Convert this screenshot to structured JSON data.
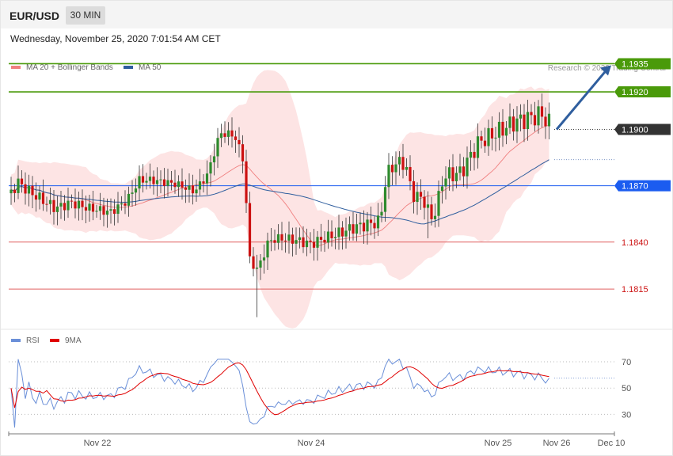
{
  "header": {
    "symbol": "EUR/USD",
    "timeframe": "30 MIN"
  },
  "datetime": "Wednesday, November 25, 2020 7:01:54 AM CET",
  "legend": {
    "ma20": "MA 20 + Bollinger Bands",
    "ma50": "MA 50",
    "rsi": "RSI",
    "rsi_ma": "9MA"
  },
  "credit": "Research © 2020 Trading Central",
  "colors": {
    "ma20": "#f08080",
    "ma50": "#2f5e9e",
    "rsi": "#6a8fd8",
    "rsi_ma": "#e00000",
    "bull": "#2e8b2e",
    "bear": "#cc1111",
    "target": "#4a9a0a",
    "pivot": "#1b5cf0",
    "support": "#e06060",
    "last": "#333333"
  },
  "chart_data": [
    {
      "type": "candlestick",
      "title": "EUR/USD 30 MIN",
      "ylim": [
        1.1791,
        1.1947
      ],
      "x_ticks": [
        "Nov 22",
        "Nov 24",
        "Nov 25",
        "Nov 26",
        "Dec 10"
      ],
      "levels": [
        {
          "label": "1.1935",
          "value": 1.1935,
          "kind": "resistance"
        },
        {
          "label": "1.1920",
          "value": 1.192,
          "kind": "resistance"
        },
        {
          "label": "1.1900",
          "value": 1.19,
          "kind": "last"
        },
        {
          "label": "1.1870",
          "value": 1.187,
          "kind": "pivot"
        },
        {
          "label": "1.1840",
          "value": 1.184,
          "kind": "support"
        },
        {
          "label": "1.1815",
          "value": 1.1815,
          "kind": "support"
        }
      ],
      "projection": {
        "from": 1.19,
        "to": 1.1935
      },
      "series": [
        {
          "name": "MA 20 + Bollinger Bands",
          "kind": "band"
        },
        {
          "name": "MA 50",
          "kind": "line"
        }
      ]
    },
    {
      "type": "line",
      "title": "RSI",
      "ylim": [
        17,
        73
      ],
      "y_ticks": [
        "70",
        "50",
        "30"
      ],
      "series": [
        {
          "name": "RSI"
        },
        {
          "name": "9MA"
        }
      ]
    }
  ]
}
